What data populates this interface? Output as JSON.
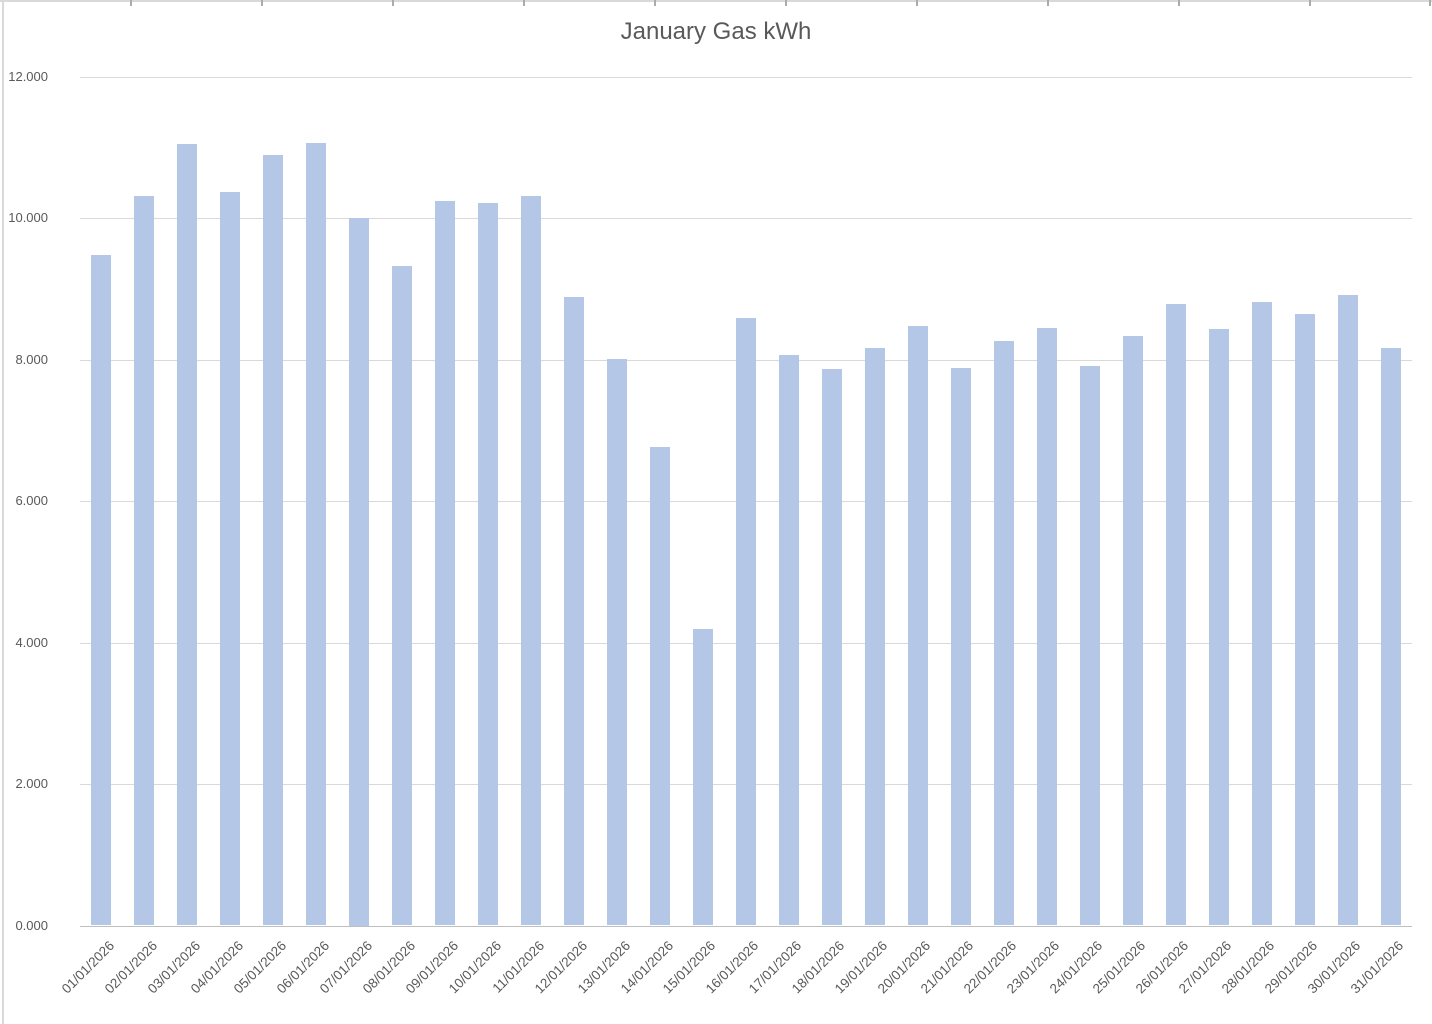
{
  "chart_data": {
    "type": "bar",
    "title": "January Gas kWh",
    "xlabel": "",
    "ylabel": "",
    "ylim": [
      0,
      12000
    ],
    "grid": true,
    "legend": false,
    "y_tick_values": [
      0,
      2000,
      4000,
      6000,
      8000,
      10000,
      12000
    ],
    "y_tick_labels": [
      "0.000",
      "2.000",
      "4.000",
      "6.000",
      "8.000",
      "10.000",
      "12.000"
    ],
    "categories": [
      "01/01/2026",
      "02/01/2026",
      "03/01/2026",
      "04/01/2026",
      "05/01/2026",
      "06/01/2026",
      "07/01/2026",
      "08/01/2026",
      "09/01/2026",
      "10/01/2026",
      "11/01/2026",
      "12/01/2026",
      "13/01/2026",
      "14/01/2026",
      "15/01/2026",
      "16/01/2026",
      "17/01/2026",
      "18/01/2026",
      "19/01/2026",
      "20/01/2026",
      "21/01/2026",
      "22/01/2026",
      "23/01/2026",
      "24/01/2026",
      "25/01/2026",
      "26/01/2026",
      "27/01/2026",
      "28/01/2026",
      "29/01/2026",
      "30/01/2026",
      "31/01/2026"
    ],
    "values": [
      9480,
      10310,
      11040,
      10370,
      10890,
      11060,
      10000,
      9320,
      10240,
      10210,
      10310,
      8890,
      8010,
      6760,
      4190,
      8580,
      8070,
      7870,
      8160,
      8470,
      7880,
      8260,
      8450,
      7910,
      8330,
      8780,
      8430,
      8810,
      8650,
      8910,
      8160
    ],
    "colors": {
      "bar": "#b4c7e7",
      "gridline": "#d9d9d9",
      "axis_line": "#bfbfbf",
      "text": "#595959",
      "sheet_gridline": "#d9d9d9",
      "sheet_tick": "#ababab"
    }
  }
}
